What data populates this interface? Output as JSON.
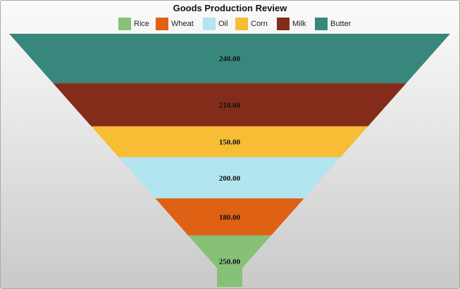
{
  "chart_data": {
    "type": "funnel",
    "title": "Goods Production Review",
    "categories": [
      "Rice",
      "Wheat",
      "Oil",
      "Corn",
      "Milk",
      "Butter"
    ],
    "values": [
      250,
      180,
      200,
      150,
      210,
      240
    ],
    "value_labels": [
      "250.00",
      "180.00",
      "200.00",
      "150.00",
      "210.00",
      "240.00"
    ],
    "colors": [
      "#87c177",
      "#df6114",
      "#b2e5f0",
      "#f6bd35",
      "#842c1a",
      "#37877c"
    ],
    "legend_position": "top",
    "order": "first category at the narrow bottom"
  }
}
